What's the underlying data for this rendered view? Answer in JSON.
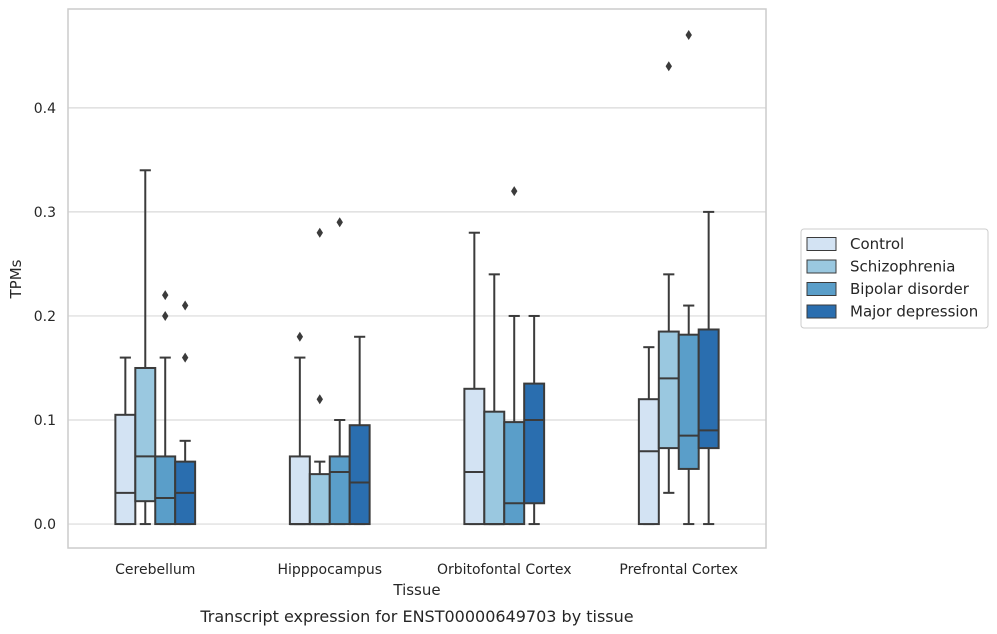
{
  "caption": "Transcript expression for ENST00000649703 by tissue",
  "chart_data": {
    "type": "box",
    "title": "",
    "xlabel": "Tissue",
    "ylabel": "TPMs",
    "ylim": [
      -0.023,
      0.495
    ],
    "yticks": [
      0.0,
      0.1,
      0.2,
      0.3,
      0.4
    ],
    "ytick_labels": [
      "0.0",
      "0.1",
      "0.2",
      "0.3",
      "0.4"
    ],
    "grid": "horizontal",
    "legend_position": "right",
    "categories": [
      "Cerebellum",
      "Hipppocampus",
      "Orbitofontal Cortex",
      "Prefrontal Cortex"
    ],
    "series": [
      {
        "name": "Control",
        "color": "#d3e3f3",
        "boxes": [
          {
            "whislo": 0.0,
            "q1": 0.0,
            "med": 0.03,
            "q3": 0.105,
            "whishi": 0.16,
            "fliers": []
          },
          {
            "whislo": 0.0,
            "q1": 0.0,
            "med": 0.0,
            "q3": 0.065,
            "whishi": 0.16,
            "fliers": [
              0.18
            ]
          },
          {
            "whislo": 0.0,
            "q1": 0.0,
            "med": 0.05,
            "q3": 0.13,
            "whishi": 0.28,
            "fliers": []
          },
          {
            "whislo": 0.0,
            "q1": 0.0,
            "med": 0.07,
            "q3": 0.12,
            "whishi": 0.17,
            "fliers": []
          }
        ]
      },
      {
        "name": "Schizophrenia",
        "color": "#9ac8e0",
        "boxes": [
          {
            "whislo": 0.0,
            "q1": 0.022,
            "med": 0.065,
            "q3": 0.15,
            "whishi": 0.34,
            "fliers": []
          },
          {
            "whislo": 0.0,
            "q1": 0.0,
            "med": 0.0,
            "q3": 0.048,
            "whishi": 0.06,
            "fliers": [
              0.12,
              0.28
            ]
          },
          {
            "whislo": 0.0,
            "q1": 0.0,
            "med": 0.0,
            "q3": 0.108,
            "whishi": 0.24,
            "fliers": []
          },
          {
            "whislo": 0.03,
            "q1": 0.073,
            "med": 0.14,
            "q3": 0.185,
            "whishi": 0.24,
            "fliers": [
              0.44
            ]
          }
        ]
      },
      {
        "name": "Bipolar disorder",
        "color": "#5a9ec9",
        "boxes": [
          {
            "whislo": 0.0,
            "q1": 0.0,
            "med": 0.025,
            "q3": 0.065,
            "whishi": 0.16,
            "fliers": [
              0.2,
              0.22
            ]
          },
          {
            "whislo": 0.0,
            "q1": 0.0,
            "med": 0.05,
            "q3": 0.065,
            "whishi": 0.1,
            "fliers": [
              0.29
            ]
          },
          {
            "whislo": 0.0,
            "q1": 0.0,
            "med": 0.02,
            "q3": 0.098,
            "whishi": 0.2,
            "fliers": [
              0.32
            ]
          },
          {
            "whislo": 0.0,
            "q1": 0.053,
            "med": 0.085,
            "q3": 0.182,
            "whishi": 0.21,
            "fliers": [
              0.47
            ]
          }
        ]
      },
      {
        "name": "Major depression",
        "color": "#2a6eaf",
        "boxes": [
          {
            "whislo": 0.0,
            "q1": 0.0,
            "med": 0.03,
            "q3": 0.06,
            "whishi": 0.08,
            "fliers": [
              0.16,
              0.21
            ]
          },
          {
            "whislo": 0.0,
            "q1": 0.0,
            "med": 0.04,
            "q3": 0.095,
            "whishi": 0.18,
            "fliers": []
          },
          {
            "whislo": 0.0,
            "q1": 0.02,
            "med": 0.1,
            "q3": 0.135,
            "whishi": 0.2,
            "fliers": []
          },
          {
            "whislo": 0.0,
            "q1": 0.073,
            "med": 0.09,
            "q3": 0.187,
            "whishi": 0.3,
            "fliers": []
          }
        ]
      }
    ]
  }
}
